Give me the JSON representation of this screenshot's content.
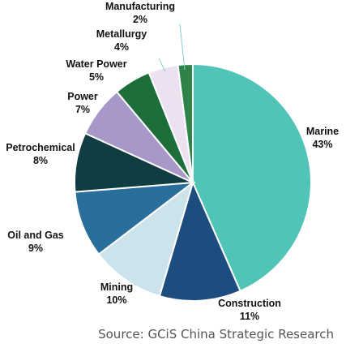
{
  "chart_data": {
    "type": "pie",
    "slices": [
      {
        "label": "Marine",
        "value": 43,
        "value_label": "43%",
        "color": "#4fc4b7"
      },
      {
        "label": "Construction",
        "value": 11,
        "value_label": "11%",
        "color": "#1d4d7f"
      },
      {
        "label": "Mining",
        "value": 10,
        "value_label": "10%",
        "color": "#cde3ec"
      },
      {
        "label": "Oil and Gas",
        "value": 9,
        "value_label": "9%",
        "color": "#2a6e9c"
      },
      {
        "label": "Petrochemical",
        "value": 8,
        "value_label": "8%",
        "color": "#0f3d42"
      },
      {
        "label": "Power",
        "value": 7,
        "value_label": "7%",
        "color": "#a898c9"
      },
      {
        "label": "Water Power",
        "value": 5,
        "value_label": "5%",
        "color": "#1e6e3c"
      },
      {
        "label": "Metallurgy",
        "value": 4,
        "value_label": "4%",
        "color": "#ece1f1"
      },
      {
        "label": "Manufacturing",
        "value": 2,
        "value_label": "2%",
        "color": "#2f8248"
      }
    ],
    "start_angle_deg": 0,
    "direction": "clockwise"
  },
  "source": "Source: GCiS China Strategic Research"
}
